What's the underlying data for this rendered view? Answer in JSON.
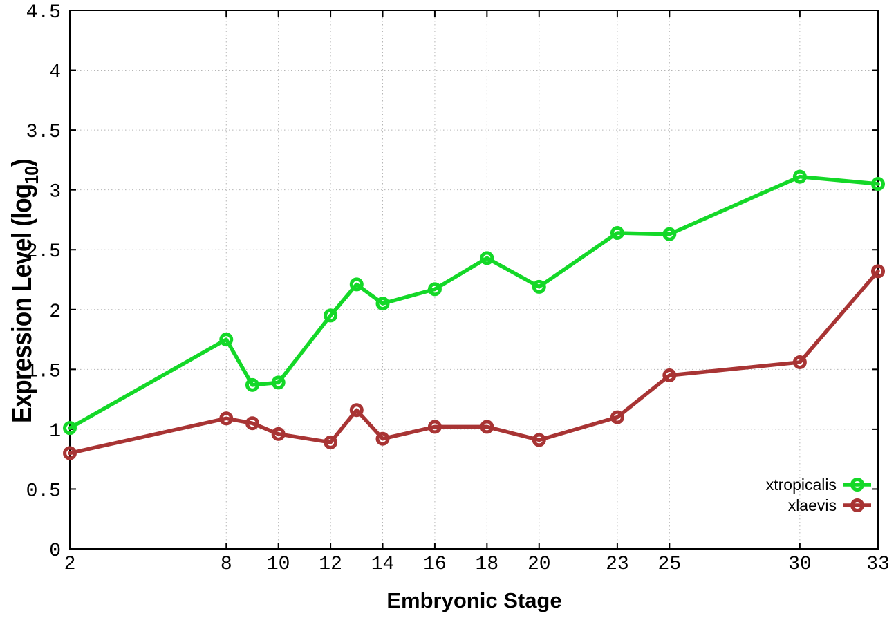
{
  "chart_data": {
    "type": "line",
    "title": "",
    "xlabel": "Embryonic Stage",
    "ylabel": "Expression Level (log10)",
    "ylabel_parts": {
      "pre": "Expression Level (log",
      "sub": "10",
      "post": ")"
    },
    "xlim": [
      2,
      33
    ],
    "ylim": [
      0,
      4.5
    ],
    "x_ticks": [
      2,
      8,
      10,
      12,
      14,
      16,
      18,
      20,
      23,
      25,
      30,
      33
    ],
    "y_ticks": [
      0,
      0.5,
      1,
      1.5,
      2,
      2.5,
      3,
      3.5,
      4,
      4.5
    ],
    "grid": true,
    "legend_position": "inside-bottom-right",
    "x": [
      2,
      8,
      9,
      10,
      12,
      13,
      14,
      16,
      18,
      20,
      23,
      25,
      30,
      33
    ],
    "series": [
      {
        "name": "xtropicalis",
        "color": "#14d828",
        "marker": "open-circle",
        "values": [
          1.01,
          1.75,
          1.37,
          1.39,
          1.95,
          2.21,
          2.05,
          2.17,
          2.43,
          2.19,
          2.64,
          2.63,
          3.11,
          3.05
        ]
      },
      {
        "name": "xlaevis",
        "color": "#a83434",
        "marker": "open-circle",
        "values": [
          0.8,
          1.09,
          1.05,
          0.96,
          0.89,
          1.16,
          0.92,
          1.02,
          1.02,
          0.91,
          1.1,
          1.45,
          1.56,
          2.32
        ]
      }
    ]
  },
  "style_colors": {
    "border": "#000000",
    "grid": "#b5b5b5",
    "text": "#000000",
    "background": "#ffffff"
  }
}
